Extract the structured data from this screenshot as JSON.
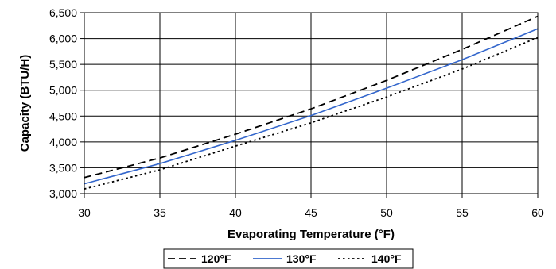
{
  "chart_data": {
    "type": "line",
    "title": "",
    "xlabel": "Evaporating Temperature (°F)",
    "ylabel": "Capacity (BTU/H)",
    "xlim": [
      30,
      60
    ],
    "ylim": [
      3000,
      6500
    ],
    "x_ticks": [
      30,
      35,
      40,
      45,
      50,
      55,
      60
    ],
    "x_tick_labels": [
      "30",
      "35",
      "40",
      "45",
      "50",
      "55",
      "60"
    ],
    "y_ticks": [
      3000,
      3500,
      4000,
      4500,
      5000,
      5500,
      6000,
      6500
    ],
    "y_tick_labels": [
      "3,000",
      "3,500",
      "4,000",
      "4,500",
      "5,000",
      "5,500",
      "6,000",
      "6,500"
    ],
    "grid": true,
    "legend_position": "bottom-center",
    "x": [
      30,
      35,
      40,
      45,
      50,
      55,
      60
    ],
    "series": [
      {
        "name": "120°F",
        "color": "#000000",
        "dash": "dashed",
        "values": [
          3310,
          3690,
          4150,
          4640,
          5190,
          5790,
          6430
        ]
      },
      {
        "name": "130°F",
        "color": "#3366cc",
        "dash": "solid",
        "values": [
          3190,
          3580,
          4030,
          4510,
          5040,
          5590,
          6190
        ]
      },
      {
        "name": "140°F",
        "color": "#000000",
        "dash": "dotted",
        "values": [
          3090,
          3460,
          3920,
          4370,
          4870,
          5410,
          6020
        ]
      }
    ]
  }
}
